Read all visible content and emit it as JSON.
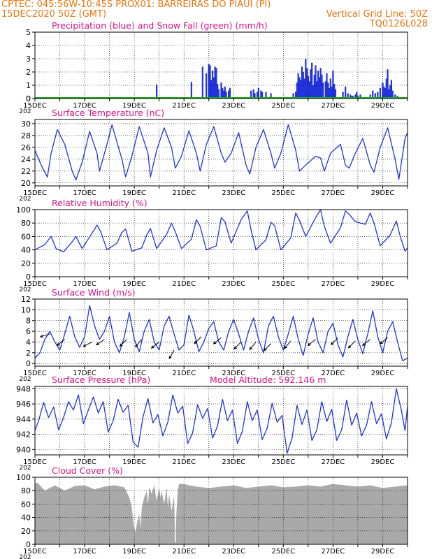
{
  "header": {
    "line1_left": "CPTEC:  045:56W-10:45S  PROX01: BARREIRAS DO PIAUI (PI)",
    "line2_left": "15DEC2020 50Z (GMT)",
    "line2_right": "Vertical Grid Line: 50Z",
    "line3_right": "TQ0126L028",
    "cut_year": "202"
  },
  "colors": {
    "header": "#e8750e",
    "title": "#dd1188",
    "series": "#2233dd",
    "snow": "#18aa18",
    "cloud": "#a9a9a9",
    "wind": "#000000"
  },
  "x_axis": {
    "ticks": [
      "15DEC",
      "17DEC",
      "19DEC",
      "21DEC",
      "23DEC",
      "25DEC",
      "27DEC",
      "29DEC"
    ],
    "tick_days": [
      0,
      2,
      4,
      6,
      8,
      10,
      12,
      14
    ],
    "range_days": [
      0,
      15
    ]
  },
  "chart_data": [
    {
      "id": "precip",
      "type": "bar",
      "title": "Precipitation (blue) and Snow Fall (green) (mm/h)",
      "ylim": [
        0,
        5
      ],
      "yticks": [
        0,
        1,
        2,
        3,
        4,
        5
      ],
      "x_days": [
        4.9,
        6.3,
        6.75,
        6.9,
        7.0,
        7.05,
        7.1,
        7.15,
        7.2,
        7.25,
        7.3,
        7.35,
        7.4,
        7.5,
        7.55,
        7.6,
        7.65,
        7.7,
        7.8,
        7.85,
        8.7,
        8.8,
        8.85,
        8.95,
        9.0,
        9.1,
        9.15,
        9.3,
        9.5,
        10.4,
        10.5,
        10.55,
        10.6,
        10.65,
        10.7,
        10.75,
        10.8,
        10.85,
        10.9,
        10.95,
        11.0,
        11.05,
        11.1,
        11.15,
        11.2,
        11.25,
        11.3,
        11.35,
        11.4,
        11.45,
        11.5,
        11.55,
        11.6,
        11.7,
        11.75,
        11.8,
        11.85,
        11.9,
        11.95,
        12.0,
        12.05,
        12.1,
        12.4,
        12.5,
        12.6,
        12.7,
        12.75,
        12.8,
        12.9,
        12.95,
        13.0,
        13.1,
        13.5,
        13.6,
        13.7,
        13.8,
        13.9,
        14.0,
        14.05,
        14.1,
        14.15,
        14.2,
        14.25,
        14.3,
        14.35,
        14.4,
        14.5,
        14.6
      ],
      "values": [
        1.05,
        1.25,
        2.4,
        1.9,
        2.6,
        2.5,
        1.4,
        2.1,
        1.6,
        2.4,
        2.3,
        1.1,
        0.7,
        1.2,
        0.8,
        0.6,
        0.9,
        0.5,
        0.6,
        0.8,
        0.6,
        0.7,
        0.4,
        0.5,
        0.8,
        0.6,
        0.5,
        0.5,
        0.4,
        0.4,
        0.5,
        1.2,
        1.9,
        1.6,
        1.4,
        2.4,
        2.0,
        1.5,
        3.0,
        2.3,
        1.7,
        1.3,
        2.2,
        2.7,
        1.0,
        1.8,
        2.5,
        1.3,
        2.1,
        1.6,
        2.3,
        1.8,
        1.2,
        1.3,
        1.9,
        1.2,
        0.8,
        1.5,
        0.9,
        2.1,
        1.1,
        0.7,
        0.5,
        0.9,
        0.4,
        0.3,
        0.2,
        0.2,
        0.3,
        0.5,
        0.2,
        0.3,
        0.3,
        0.6,
        0.4,
        0.5,
        0.8,
        1.2,
        0.9,
        0.8,
        1.5,
        2.2,
        0.7,
        1.0,
        1.4,
        0.6,
        0.3,
        0.2
      ],
      "snow": "0"
    },
    {
      "id": "temperature",
      "type": "line",
      "title": "Surface Temperature (nC)",
      "ylim": [
        19.5,
        30.7
      ],
      "yticks": [
        20,
        22,
        24,
        26,
        28,
        30
      ],
      "x_days": [
        0,
        0.25,
        0.5,
        0.65,
        0.9,
        1.2,
        1.5,
        1.65,
        1.9,
        2.2,
        2.5,
        2.6,
        2.9,
        3.1,
        3.5,
        3.65,
        3.9,
        4.2,
        4.55,
        4.65,
        4.9,
        5.2,
        5.5,
        5.65,
        5.9,
        6.2,
        6.5,
        6.65,
        6.9,
        7.2,
        7.5,
        7.65,
        7.9,
        8.2,
        8.5,
        8.65,
        8.9,
        9.2,
        9.5,
        9.65,
        9.9,
        10.2,
        10.5,
        10.65,
        10.9,
        11.3,
        11.5,
        11.65,
        11.9,
        12.3,
        12.5,
        12.65,
        12.9,
        13.2,
        13.5,
        13.65,
        13.9,
        14.2,
        14.5,
        14.65,
        14.9,
        15.0
      ],
      "values": [
        25.5,
        23,
        21,
        25,
        29,
        26.5,
        22,
        20.5,
        23.5,
        28.7,
        25,
        22,
        26.5,
        29.8,
        24,
        21,
        24.5,
        29.5,
        25,
        21,
        25.5,
        29.3,
        26,
        22.5,
        24.5,
        28.8,
        25,
        22,
        26.5,
        29.5,
        25,
        23.5,
        25,
        28.5,
        23,
        21.5,
        26,
        29,
        25,
        22.5,
        25,
        29.8,
        25.5,
        22,
        23,
        24.5,
        24.2,
        22,
        25,
        26.5,
        23,
        22.5,
        25,
        27.5,
        23,
        21.8,
        26,
        29.3,
        24,
        20.6,
        27.5,
        28.5
      ]
    },
    {
      "id": "humidity",
      "type": "line",
      "title": "Relative Humidity (%)",
      "ylim": [
        0,
        100
      ],
      "yticks": [
        0,
        20,
        40,
        60,
        80,
        100
      ],
      "x_days": [
        0,
        0.4,
        0.65,
        0.85,
        1.15,
        1.5,
        1.65,
        1.9,
        2.3,
        2.5,
        2.65,
        2.9,
        3.3,
        3.5,
        3.65,
        3.9,
        4.3,
        4.5,
        4.65,
        4.9,
        5.3,
        5.5,
        5.65,
        5.9,
        6.3,
        6.5,
        6.65,
        6.9,
        7.3,
        7.5,
        7.65,
        7.9,
        8.3,
        8.55,
        8.7,
        8.9,
        9.3,
        9.5,
        9.65,
        9.9,
        10.3,
        10.5,
        10.65,
        10.9,
        11.3,
        11.5,
        11.65,
        11.9,
        12.3,
        12.5,
        12.65,
        12.9,
        13.3,
        13.5,
        13.65,
        13.9,
        14.3,
        14.55,
        14.7,
        14.9,
        15.0
      ],
      "values": [
        40,
        48,
        60,
        42,
        37,
        52,
        60,
        42,
        65,
        77,
        67,
        40,
        50,
        66,
        71,
        38,
        43,
        62,
        72,
        42,
        63,
        80,
        67,
        42,
        56,
        85,
        75,
        40,
        46,
        88,
        82,
        50,
        85,
        98,
        70,
        40,
        55,
        81,
        76,
        40,
        58,
        95,
        84,
        60,
        88,
        100,
        75,
        50,
        73,
        98,
        93,
        82,
        78,
        95,
        80,
        46,
        62,
        83,
        61,
        38,
        43
      ]
    },
    {
      "id": "wind",
      "type": "line",
      "title": "Surface Wind (m/s)",
      "ylim": [
        -0.5,
        12
      ],
      "yticks": [
        0,
        2,
        4,
        6,
        8,
        10,
        12
      ],
      "x_days": [
        0,
        0.2,
        0.4,
        0.6,
        0.8,
        1.0,
        1.2,
        1.4,
        1.6,
        1.8,
        2.0,
        2.2,
        2.4,
        2.6,
        2.8,
        3.0,
        3.2,
        3.4,
        3.6,
        3.8,
        4.0,
        4.2,
        4.4,
        4.6,
        4.8,
        5.0,
        5.2,
        5.4,
        5.6,
        5.8,
        6.0,
        6.2,
        6.4,
        6.6,
        6.8,
        7.0,
        7.2,
        7.4,
        7.6,
        7.8,
        8.0,
        8.2,
        8.4,
        8.6,
        8.8,
        9.0,
        9.2,
        9.4,
        9.6,
        9.8,
        10.0,
        10.2,
        10.4,
        10.6,
        10.8,
        11.0,
        11.2,
        11.4,
        11.6,
        11.8,
        12.0,
        12.2,
        12.4,
        12.6,
        12.8,
        13.0,
        13.2,
        13.4,
        13.6,
        13.8,
        14.0,
        14.2,
        14.4,
        14.6,
        14.8,
        15.0
      ],
      "values": [
        1,
        2,
        4.5,
        6,
        4,
        2.5,
        5.5,
        8.8,
        5,
        3,
        5,
        10.8,
        7,
        4.5,
        6,
        8.8,
        4,
        2,
        5,
        9.5,
        4.5,
        2.2,
        6,
        8.2,
        4,
        2.5,
        7,
        8.8,
        5.5,
        2.5,
        3.5,
        9,
        6,
        2.2,
        4,
        6.5,
        7.8,
        4,
        2.5,
        6,
        8.2,
        5.5,
        2.5,
        6,
        8.5,
        4.5,
        2,
        7,
        8.8,
        5,
        2.5,
        5.5,
        8.8,
        4.5,
        1.5,
        5.5,
        8.5,
        4,
        2,
        6,
        7.5,
        3.5,
        1.2,
        5,
        8.2,
        4.5,
        1.8,
        5.5,
        9.8,
        5,
        2,
        6,
        7.8,
        4,
        0.5,
        1
      ],
      "arrows": [
        {
          "x": 0.6,
          "y": 5.5,
          "dx": 1,
          "dy": 0.3
        },
        {
          "x": 1.2,
          "y": 4.5,
          "dx": 1,
          "dy": 0.8
        },
        {
          "x": 2.3,
          "y": 4.0,
          "dx": 1,
          "dy": 0.5
        },
        {
          "x": 2.8,
          "y": 4.5,
          "dx": 1,
          "dy": 0.7
        },
        {
          "x": 3.7,
          "y": 4.5,
          "dx": 1,
          "dy": 1.0
        },
        {
          "x": 4.3,
          "y": 4.5,
          "dx": 1,
          "dy": 1.2
        },
        {
          "x": 5.0,
          "y": 4.0,
          "dx": 1,
          "dy": 0.8
        },
        {
          "x": 5.6,
          "y": 2.5,
          "dx": 1,
          "dy": 1.8
        },
        {
          "x": 6.7,
          "y": 5.0,
          "dx": 1,
          "dy": 1.0
        },
        {
          "x": 7.5,
          "y": 4.8,
          "dx": 1,
          "dy": 0.8
        },
        {
          "x": 8.3,
          "y": 4.0,
          "dx": 1,
          "dy": 1.0
        },
        {
          "x": 8.9,
          "y": 4.0,
          "dx": 1,
          "dy": 1.2
        },
        {
          "x": 9.5,
          "y": 3.7,
          "dx": 1,
          "dy": 1.0
        },
        {
          "x": 10.3,
          "y": 4.2,
          "dx": 1,
          "dy": 1.2
        },
        {
          "x": 11.3,
          "y": 4.5,
          "dx": 1,
          "dy": 0.8
        },
        {
          "x": 12.2,
          "y": 4.8,
          "dx": 1,
          "dy": 1.0
        },
        {
          "x": 12.9,
          "y": 4.2,
          "dx": 1,
          "dy": 1.0
        },
        {
          "x": 13.5,
          "y": 4.5,
          "dx": 1,
          "dy": 0.8
        },
        {
          "x": 14.2,
          "y": 4.8,
          "dx": 1,
          "dy": 0.8
        }
      ]
    },
    {
      "id": "pressure",
      "type": "line",
      "title": "Surface Pressure (hPa)",
      "annotation": "Model Altitude: 592.146  m",
      "ylim": [
        939.3,
        948.3
      ],
      "yticks": [
        940,
        942,
        944,
        946,
        948
      ],
      "x_days": [
        0,
        0.15,
        0.35,
        0.55,
        0.75,
        0.95,
        1.15,
        1.35,
        1.55,
        1.75,
        1.95,
        2.15,
        2.35,
        2.55,
        2.75,
        2.95,
        3.15,
        3.35,
        3.55,
        3.75,
        3.95,
        4.15,
        4.35,
        4.55,
        4.75,
        4.95,
        5.15,
        5.35,
        5.55,
        5.75,
        5.95,
        6.15,
        6.35,
        6.55,
        6.75,
        6.95,
        7.15,
        7.35,
        7.55,
        7.75,
        7.95,
        8.15,
        8.35,
        8.55,
        8.75,
        8.95,
        9.15,
        9.35,
        9.55,
        9.75,
        9.95,
        10.15,
        10.35,
        10.55,
        10.75,
        10.95,
        11.15,
        11.35,
        11.55,
        11.75,
        11.95,
        12.15,
        12.35,
        12.55,
        12.75,
        12.95,
        13.15,
        13.35,
        13.55,
        13.75,
        13.95,
        14.15,
        14.35,
        14.55,
        14.75,
        14.9,
        15.0
      ],
      "values": [
        942.5,
        943.8,
        946.2,
        944.2,
        945.6,
        942.6,
        944.2,
        946.3,
        945.2,
        947.2,
        943.4,
        945.2,
        946.9,
        944.8,
        946.3,
        942.3,
        943.8,
        946.6,
        944.9,
        945.8,
        941,
        940.3,
        944.3,
        946.7,
        943.5,
        944.6,
        941.8,
        943.6,
        947.2,
        944.8,
        945.7,
        940.8,
        942.2,
        945.9,
        944.1,
        945.4,
        941.5,
        943.1,
        946.6,
        943.8,
        945.2,
        940.8,
        942.4,
        946.3,
        943.8,
        945.2,
        941.3,
        942.8,
        946.1,
        943.6,
        944.5,
        939.5,
        941.5,
        945.8,
        943.3,
        945.2,
        941.2,
        942.6,
        946.3,
        943.7,
        945.3,
        941.2,
        942.6,
        946.5,
        943.2,
        944.8,
        941.8,
        943.2,
        946.3,
        943.4,
        944.7,
        941.4,
        943.5,
        948,
        945.2,
        942.5,
        945.7
      ]
    },
    {
      "id": "cloud",
      "type": "area",
      "title": "Cloud Cover (%)",
      "ylim": [
        0,
        100
      ],
      "yticks": [
        0,
        20,
        40,
        60,
        80,
        100
      ],
      "x_days": [
        0,
        0.1,
        0.4,
        0.8,
        1.2,
        1.6,
        2.0,
        2.4,
        2.8,
        3.2,
        3.6,
        3.8,
        3.9,
        3.95,
        4.0,
        4.05,
        4.1,
        4.2,
        4.25,
        4.3,
        4.4,
        4.5,
        4.55,
        4.6,
        4.7,
        4.8,
        4.9,
        5.0,
        5.05,
        5.1,
        5.2,
        5.3,
        5.35,
        5.4,
        5.5,
        5.6,
        5.65,
        5.7,
        5.75,
        5.8,
        6.0,
        6.2,
        6.5,
        7.0,
        7.5,
        8.0,
        8.5,
        9.0,
        9.5,
        10.0,
        10.5,
        11.0,
        11.5,
        12.0,
        12.5,
        13.0,
        13.5,
        14.0,
        14.5,
        15.0
      ],
      "values": [
        90,
        92,
        80,
        88,
        80,
        87,
        88,
        82,
        86,
        88,
        85,
        70,
        55,
        35,
        25,
        18,
        30,
        45,
        25,
        55,
        70,
        80,
        60,
        85,
        75,
        88,
        65,
        85,
        70,
        80,
        60,
        85,
        55,
        75,
        50,
        72,
        3,
        50,
        80,
        90,
        90,
        88,
        86,
        84,
        86,
        88,
        84,
        86,
        88,
        85,
        86,
        88,
        86,
        90,
        88,
        86,
        88,
        84,
        86,
        88
      ]
    }
  ]
}
